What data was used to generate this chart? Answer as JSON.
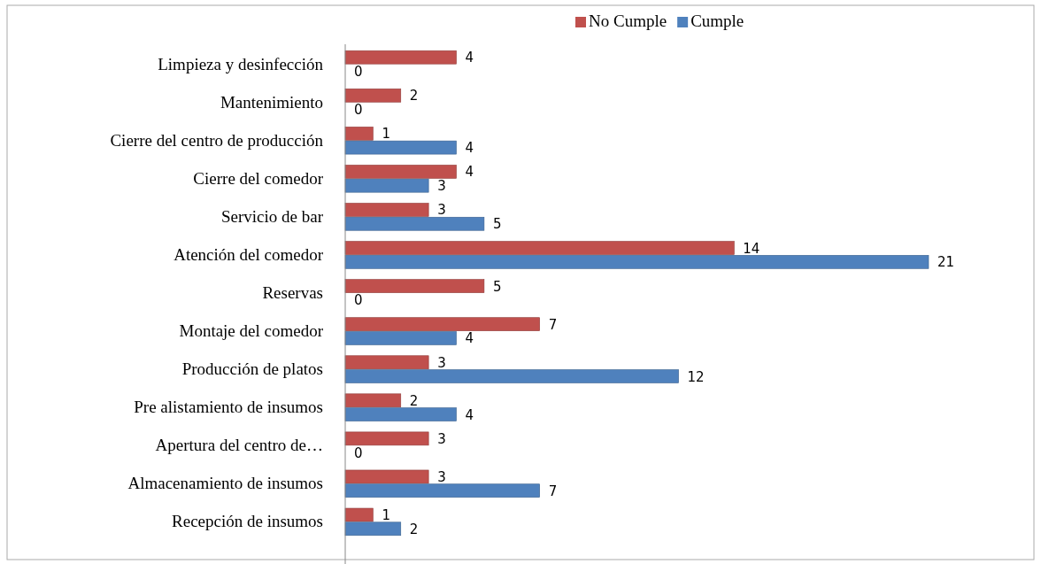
{
  "chart_data": {
    "type": "bar",
    "orientation": "horizontal",
    "categories": [
      "Limpieza y desinfección",
      "Mantenimiento",
      "Cierre del centro de producción",
      "Cierre del comedor",
      "Servicio de bar",
      "Atención del comedor",
      "Reservas",
      "Montaje del comedor",
      "Producción de platos",
      "Pre alistamiento de insumos",
      "Apertura del centro de…",
      "Almacenamiento de insumos",
      "Recepción de insumos"
    ],
    "series": [
      {
        "name": "No Cumple",
        "color": "#c0504d",
        "values": [
          4,
          2,
          1,
          4,
          3,
          14,
          5,
          7,
          3,
          2,
          3,
          3,
          1
        ]
      },
      {
        "name": "Cumple",
        "color": "#4f81bd",
        "values": [
          0,
          0,
          4,
          3,
          5,
          21,
          0,
          4,
          12,
          4,
          0,
          7,
          2
        ]
      }
    ],
    "data_labels": true,
    "legend": "top",
    "tick_labels": "y"
  }
}
